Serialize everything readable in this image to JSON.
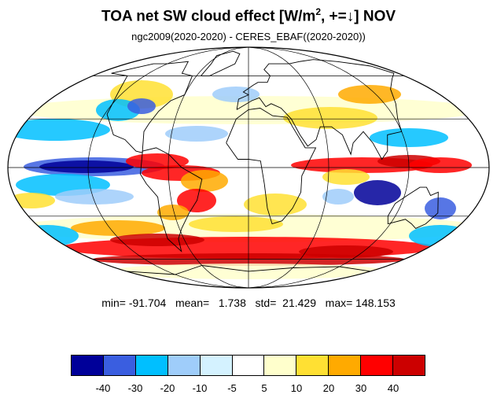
{
  "title": {
    "main": "TOA net SW cloud effect [W/m",
    "sup": "2",
    "tail": ", +=↓]  NOV"
  },
  "subtitle": "ngc2009(2020-2020) - CERES_EBAF((2020-2020))",
  "stats": "min= -91.704   mean=   1.738   std=  21.429   max= 148.153",
  "colorbar": {
    "colors": [
      "#000099",
      "#3a5ee0",
      "#00bfff",
      "#9fcdfa",
      "#d4f2ff",
      "#ffffff",
      "#ffffcc",
      "#ffe033",
      "#ffaa00",
      "#ff0000",
      "#cc0000"
    ],
    "labels": [
      "-40",
      "-30",
      "-20",
      "-10",
      "-5",
      "5",
      "10",
      "20",
      "30",
      "40"
    ]
  },
  "map": {
    "projection": "Mollweide",
    "coastline_color": "#000000",
    "grid_color": "#000000"
  }
}
